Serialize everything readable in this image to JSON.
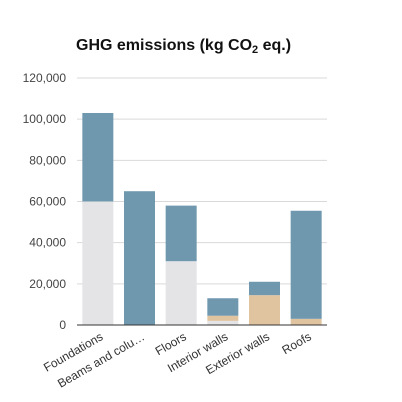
{
  "chart_data": {
    "type": "bar",
    "stacked": true,
    "title_main": "GHG emissions (kg CO",
    "title_sub": "2",
    "title_end": " eq.)",
    "categories": [
      "Foundations",
      "Beams and colu…",
      "Floors",
      "Interior walls",
      "Exterior walls",
      "Roofs"
    ],
    "series": [
      {
        "color": "#e4e4e7",
        "values": [
          60000,
          0,
          31000,
          2000,
          0,
          0
        ]
      },
      {
        "color": "#e0c4a0",
        "values": [
          0,
          0,
          0,
          2500,
          14500,
          3000
        ]
      },
      {
        "color": "#6f98ae",
        "values": [
          43000,
          65000,
          27000,
          8500,
          6500,
          52500
        ]
      }
    ],
    "ylim": [
      0,
      120000
    ],
    "yticks": [
      0,
      20000,
      40000,
      60000,
      80000,
      100000,
      120000
    ],
    "ytick_labels": [
      "0",
      "20,000",
      "40,000",
      "60,000",
      "80,000",
      "100,000",
      "120,000"
    ],
    "grid": true,
    "legend": "none"
  }
}
